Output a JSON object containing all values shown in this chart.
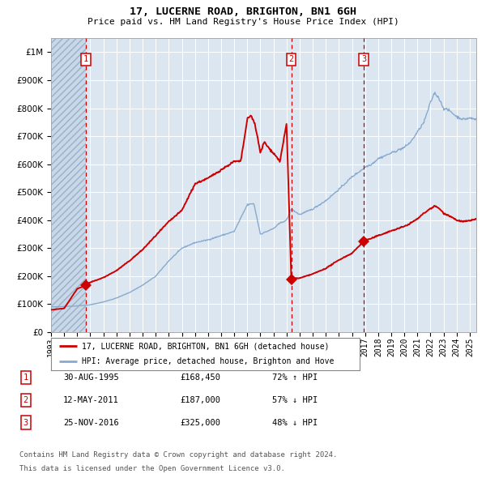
{
  "title": "17, LUCERNE ROAD, BRIGHTON, BN1 6GH",
  "subtitle": "Price paid vs. HM Land Registry's House Price Index (HPI)",
  "legend_property": "17, LUCERNE ROAD, BRIGHTON, BN1 6GH (detached house)",
  "legend_hpi": "HPI: Average price, detached house, Brighton and Hove",
  "footer1": "Contains HM Land Registry data © Crown copyright and database right 2024.",
  "footer2": "This data is licensed under the Open Government Licence v3.0.",
  "purchases": [
    {
      "num": 1,
      "date": "30-AUG-1995",
      "price": 168450,
      "pct": "72%",
      "dir": "↑"
    },
    {
      "num": 2,
      "date": "12-MAY-2011",
      "price": 187000,
      "pct": "57%",
      "dir": "↓"
    },
    {
      "num": 3,
      "date": "25-NOV-2016",
      "price": 325000,
      "pct": "48%",
      "dir": "↓"
    }
  ],
  "purchase_years": [
    1995.66,
    2011.36,
    2016.9
  ],
  "purchase_values": [
    168450,
    187000,
    325000
  ],
  "ylim": [
    0,
    1050000
  ],
  "xlim_start": 1993.0,
  "xlim_end": 2025.5,
  "bg_color": "#dce6f1",
  "grid_color": "#ffffff",
  "hatch_color": "#c8d8e8",
  "property_color": "#cc0000",
  "hpi_color": "#88aace",
  "vline_color": "#cc0000",
  "marker_color": "#cc0000",
  "title_fontsize": 9.5,
  "subtitle_fontsize": 8.0,
  "axis_fontsize": 7.5,
  "legend_fontsize": 7.0,
  "table_fontsize": 7.5,
  "footer_fontsize": 6.5
}
